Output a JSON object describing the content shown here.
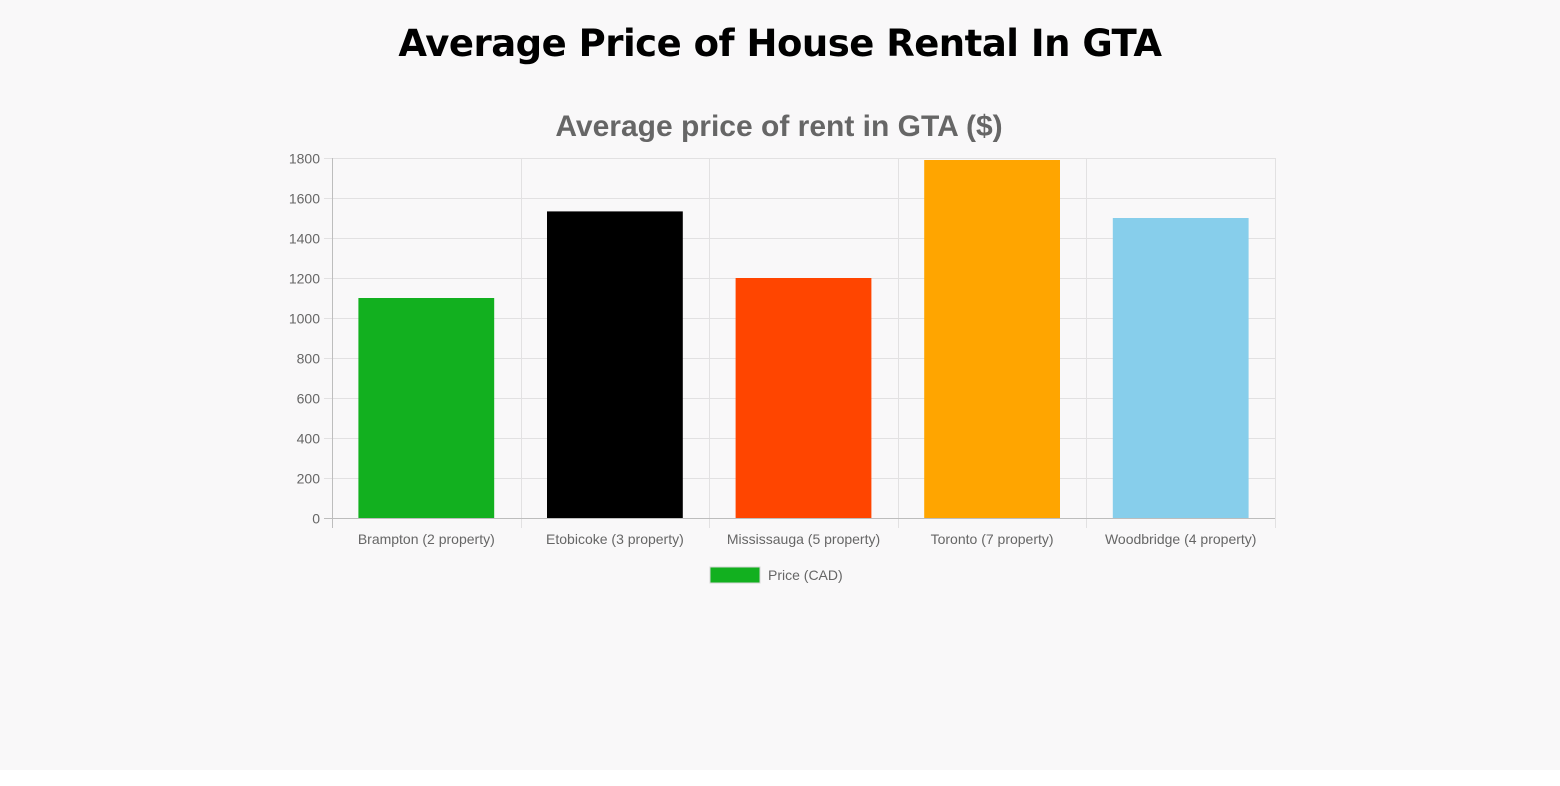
{
  "page": {
    "title": "Average Price of House Rental In GTA"
  },
  "chart_data": {
    "type": "bar",
    "title": "Average price of rent in GTA ($)",
    "xlabel": "",
    "ylabel": "",
    "ylim": [
      0,
      1800
    ],
    "yticks": [
      0,
      200,
      400,
      600,
      800,
      1000,
      1200,
      1400,
      1600,
      1800
    ],
    "grid": true,
    "legend_position": "bottom",
    "categories": [
      "Brampton (2 property)",
      "Etobicoke (3 property)",
      "Mississauga (5 property)",
      "Toronto (7 property)",
      "Woodbridge (4 property)"
    ],
    "series": [
      {
        "name": "Price (CAD)",
        "values": [
          1100,
          1533,
          1200,
          1790,
          1500
        ],
        "colors": [
          "#12b01f",
          "#000000",
          "#ff4500",
          "#ffa500",
          "#87ceeb"
        ]
      }
    ]
  }
}
